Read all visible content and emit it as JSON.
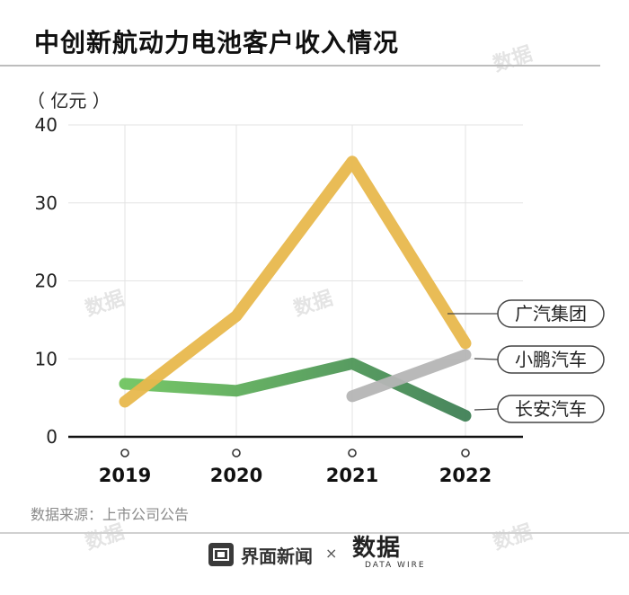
{
  "title": "中创新航动力电池客户收入情况",
  "unit_label": "（ 亿元 ）",
  "source": "数据来源：上市公司公告",
  "footer": {
    "brand_icon": "news-screen-icon",
    "brand_name": "界面新闻",
    "times": "×",
    "logo_main": "数据",
    "logo_sub": "DATA WIRE"
  },
  "watermark": "数据",
  "chart_data": {
    "type": "line",
    "categories": [
      "2019",
      "2020",
      "2021",
      "2022"
    ],
    "ylim": [
      0,
      40
    ],
    "yticks": [
      0,
      10,
      20,
      30,
      40
    ],
    "ylabel": "（ 亿元 ）",
    "grid": true,
    "series": [
      {
        "name": "广汽集团",
        "values": [
          4.5,
          15.5,
          35.3,
          12.0
        ],
        "color": "#e8b84d"
      },
      {
        "name": "小鹏汽车",
        "values": [
          null,
          null,
          5.2,
          10.5
        ],
        "color": "#b5b5b5"
      },
      {
        "name": "长安汽车",
        "values": [
          6.8,
          5.9,
          9.4,
          2.7
        ],
        "colors": [
          "#6fc45f",
          "#3f8055"
        ]
      }
    ]
  }
}
